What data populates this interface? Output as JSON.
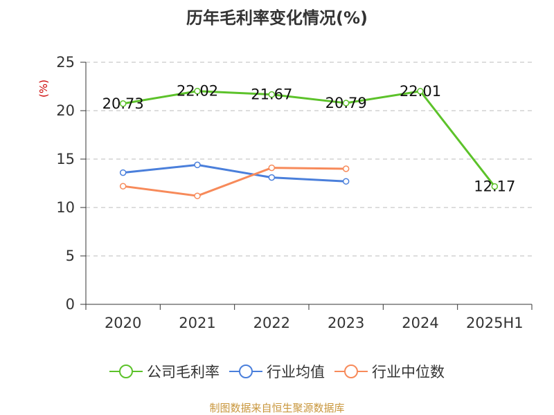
{
  "chart_data": {
    "type": "line",
    "title": "历年毛利率变化情况(%)",
    "ylabel": "(%)",
    "xlabel": "",
    "categories": [
      "2020",
      "2021",
      "2022",
      "2023",
      "2024",
      "2025H1"
    ],
    "ylim": [
      0,
      25
    ],
    "yticks": [
      0,
      5,
      10,
      15,
      20,
      25
    ],
    "grid": true,
    "legend_position": "bottom",
    "series": [
      {
        "name": "公司毛利率",
        "color": "#5cc22a",
        "values": [
          20.73,
          22.02,
          21.67,
          20.79,
          22.01,
          12.17
        ],
        "data_labels": [
          "20.73",
          "22.02",
          "21.67",
          "20.79",
          "22.01",
          "12.17"
        ]
      },
      {
        "name": "行业均值",
        "color": "#4a7fdb",
        "values": [
          13.6,
          14.4,
          13.1,
          12.7,
          null,
          null
        ]
      },
      {
        "name": "行业中位数",
        "color": "#f78a5a",
        "values": [
          12.2,
          11.2,
          14.1,
          14.0,
          null,
          null
        ]
      }
    ]
  },
  "source_text": "制图数据来自恒生聚源数据库",
  "colors": {
    "axis": "#333333",
    "grid": "#bbbbbb",
    "ylabel": "#cc0000",
    "source": "#c8963c"
  }
}
